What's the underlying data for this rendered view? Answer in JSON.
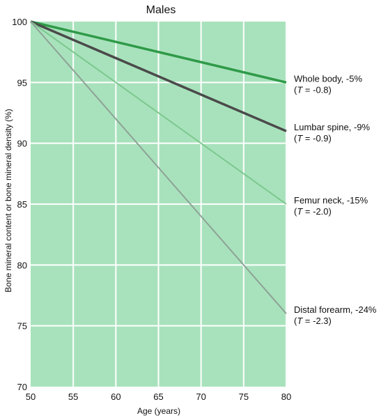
{
  "chart_data": {
    "type": "line",
    "title": "Males",
    "xlabel": "Age (years)",
    "ylabel": "Bone mineral content or bone mineral density (%)",
    "xlim": [
      50,
      80
    ],
    "ylim": [
      70,
      100
    ],
    "x_ticks": [
      50,
      55,
      60,
      65,
      70,
      75,
      80
    ],
    "y_ticks": [
      70,
      75,
      80,
      85,
      90,
      95,
      100
    ],
    "grid": true,
    "colors": {
      "background": "#a8e2bc",
      "grid": "#ffffff"
    },
    "series": [
      {
        "label_main": "Whole body, -5%",
        "t_prefix": "(",
        "t_letter": "T",
        "t_rest": " = -0.8)",
        "x": [
          50,
          80
        ],
        "values": [
          100,
          95
        ],
        "color": "#2e9a48",
        "width": 3.5
      },
      {
        "label_main": "Lumbar spine, -9%",
        "t_prefix": "(",
        "t_letter": "T",
        "t_rest": " = -0.9)",
        "x": [
          50,
          80
        ],
        "values": [
          100,
          91
        ],
        "color": "#4a4a4a",
        "width": 3.5
      },
      {
        "label_main": "Femur neck, -15%",
        "t_prefix": "(",
        "t_letter": "T",
        "t_rest": " = -2.0)",
        "x": [
          50,
          80
        ],
        "values": [
          100,
          85
        ],
        "color": "#7cc88e",
        "width": 2
      },
      {
        "label_main": "Distal forearm, -24%",
        "t_prefix": "(",
        "t_letter": "T",
        "t_rest": " = -2.3)",
        "x": [
          50,
          80
        ],
        "values": [
          100,
          76
        ],
        "color": "#8ea296",
        "width": 2
      }
    ]
  }
}
